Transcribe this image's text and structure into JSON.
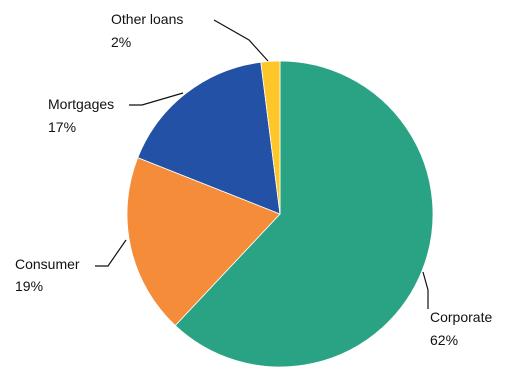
{
  "chart_data": {
    "type": "pie",
    "start_angle_deg": 0,
    "direction": "clockwise",
    "slices": [
      {
        "name": "Corporate",
        "value": 62,
        "value_label": "62%",
        "color": "#2aa384"
      },
      {
        "name": "Consumer",
        "value": 19,
        "value_label": "19%",
        "color": "#f58c3a"
      },
      {
        "name": "Mortgages",
        "value": 17,
        "value_label": "17%",
        "color": "#2251a6"
      },
      {
        "name": "Other loans",
        "value": 2,
        "value_label": "2%",
        "color": "#ffc629"
      }
    ]
  }
}
